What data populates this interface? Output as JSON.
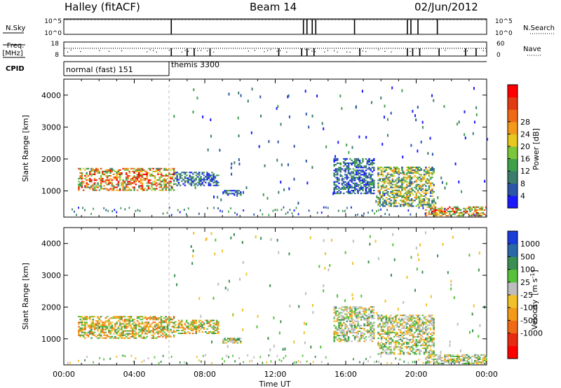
{
  "header": {
    "station": "Halley (fitACF)",
    "beam": "Beam 14",
    "date": "02/Jun/2012"
  },
  "chart_data": [
    {
      "type": "line",
      "panel": "n-sky-n-search",
      "left_label": "N.Sky",
      "right_label": "N.Search",
      "left_ticks": [
        "10^5",
        "10^0"
      ],
      "right_ticks": [
        "10^5",
        "10^0"
      ],
      "baseline_value": "10^5",
      "dropout_hours": [
        6.1,
        13.6,
        13.8,
        14.1,
        14.3,
        16.5,
        19.5,
        19.7,
        20.1,
        21.2
      ]
    },
    {
      "type": "scatter",
      "panel": "freq-nave",
      "left_label_lines": [
        "Freq.",
        "[MHz]"
      ],
      "right_label": "Nave",
      "left_ticks": [
        "18",
        "8"
      ],
      "right_ticks": [
        "60",
        "0"
      ],
      "freq_mhz": 10,
      "dropout_hours": [
        6.1,
        7.0,
        7.4,
        8.3,
        12.2,
        13.5,
        13.8,
        14.2,
        16.8,
        19.5,
        19.8,
        20.2,
        21.3,
        22.8,
        23.4
      ]
    },
    {
      "type": "table",
      "panel": "cpid",
      "label": "CPID",
      "segments": [
        {
          "name": "normal (fast) 151",
          "start_hour": 0,
          "end_hour": 6.1
        },
        {
          "name": "themis 3300",
          "start_hour": 6.1,
          "end_hour": 24
        }
      ]
    },
    {
      "type": "heatmap",
      "panel": "power",
      "ylabel": "Slant Range [km]",
      "yticks": [
        1000,
        2000,
        3000,
        4000
      ],
      "ylim": [
        180,
        4500
      ],
      "xlim": [
        0,
        24
      ],
      "colorbar_label": "Power [dB]",
      "colorbar_ticks": [
        "4",
        "8",
        "12",
        "16",
        "20",
        "24",
        "28"
      ],
      "colorbar_colors": [
        "#1a1aff",
        "#2a55a8",
        "#3a7d6d",
        "#3fa04a",
        "#7cc63a",
        "#e8c81e",
        "#f39a1b",
        "#f06a16",
        "#e33b12",
        "#ff0000"
      ],
      "echo_regions": [
        {
          "t0": 0.8,
          "t1": 6.2,
          "r0": 1000,
          "r1": 1700,
          "level": "strong"
        },
        {
          "t0": 6.2,
          "t1": 8.8,
          "r0": 1150,
          "r1": 1600,
          "level": "weak"
        },
        {
          "t0": 9.0,
          "t1": 10.0,
          "r0": 850,
          "r1": 1000,
          "level": "weak"
        },
        {
          "t0": 15.3,
          "t1": 17.6,
          "r0": 900,
          "r1": 2000,
          "level": "weak"
        },
        {
          "t0": 17.8,
          "t1": 21.0,
          "r0": 500,
          "r1": 1750,
          "level": "medium"
        },
        {
          "t0": 20.5,
          "t1": 24.0,
          "r0": 200,
          "r1": 500,
          "level": "strong"
        }
      ]
    },
    {
      "type": "heatmap",
      "panel": "velocity",
      "ylabel": "Slant Range [km]",
      "yticks": [
        1000,
        2000,
        3000,
        4000
      ],
      "ylim": [
        180,
        4500
      ],
      "xlim": [
        0,
        24
      ],
      "xticks": [
        "00:00",
        "04:00",
        "08:00",
        "12:00",
        "16:00",
        "20:00",
        "00:00"
      ],
      "xlabel": "Time UT",
      "colorbar_label": "Velocity",
      "colorbar_unit": "[m s",
      "colorbar_unit_sup": "-1",
      "colorbar_ticks": [
        "1000",
        "500",
        "100",
        "25",
        "-25",
        "-100",
        "-500",
        "-1000"
      ],
      "colorbar_colors": [
        "#1a3cd8",
        "#2a69a8",
        "#3a8f52",
        "#56c23a",
        "#bdbdbd",
        "#f2c12a",
        "#f39a1b",
        "#f06a16",
        "#e82a10",
        "#ff0000"
      ]
    }
  ]
}
